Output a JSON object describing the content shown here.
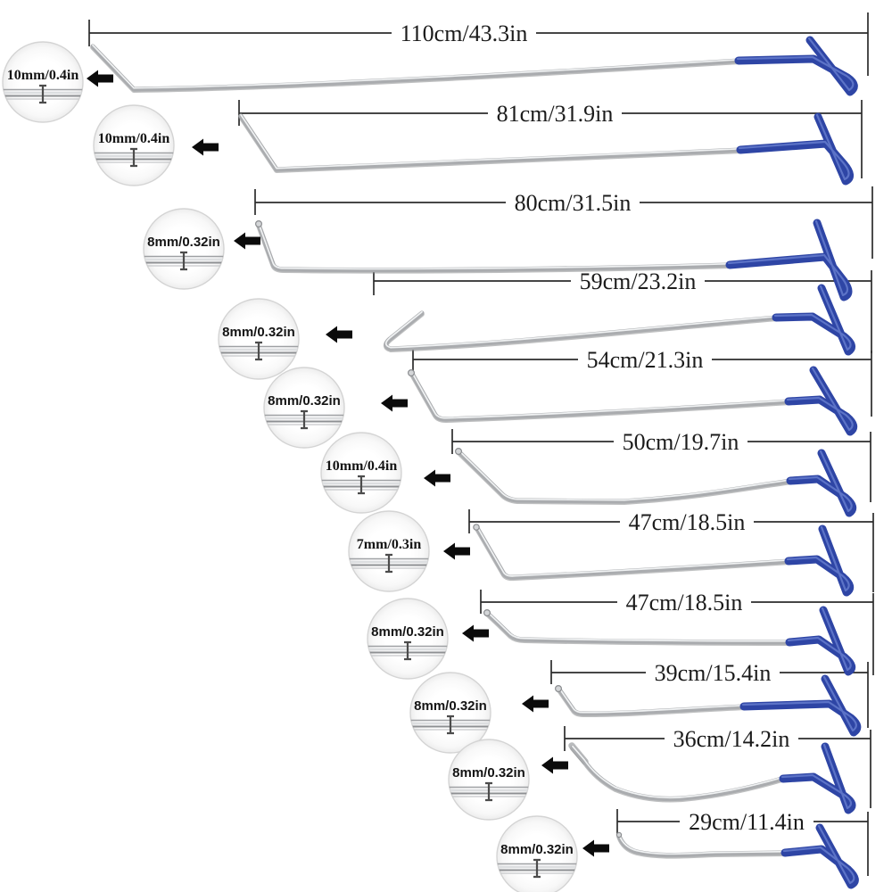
{
  "figure": {
    "background_color": "#ffffff",
    "handle_color": "#2e45a5",
    "rod_color": "#aaacaf",
    "annotation_color": "#2b2b2b",
    "rods": [
      {
        "length_label": "110cm/43.3in",
        "diameter_label": "10mm/0.4in"
      },
      {
        "length_label": "81cm/31.9in",
        "diameter_label": "10mm/0.4in"
      },
      {
        "length_label": "80cm/31.5in",
        "diameter_label": "8mm/0.32in"
      },
      {
        "length_label": "59cm/23.2in",
        "diameter_label": "8mm/0.32in"
      },
      {
        "length_label": "54cm/21.3in",
        "diameter_label": "8mm/0.32in"
      },
      {
        "length_label": "50cm/19.7in",
        "diameter_label": "10mm/0.4in"
      },
      {
        "length_label": "47cm/18.5in",
        "diameter_label": "7mm/0.3in"
      },
      {
        "length_label": "47cm/18.5in",
        "diameter_label": "8mm/0.32in"
      },
      {
        "length_label": "39cm/15.4in",
        "diameter_label": "8mm/0.32in"
      },
      {
        "length_label": "36cm/14.2in",
        "diameter_label": "8mm/0.32in"
      },
      {
        "length_label": "29cm/11.4in",
        "diameter_label": "8mm/0.32in"
      }
    ]
  }
}
